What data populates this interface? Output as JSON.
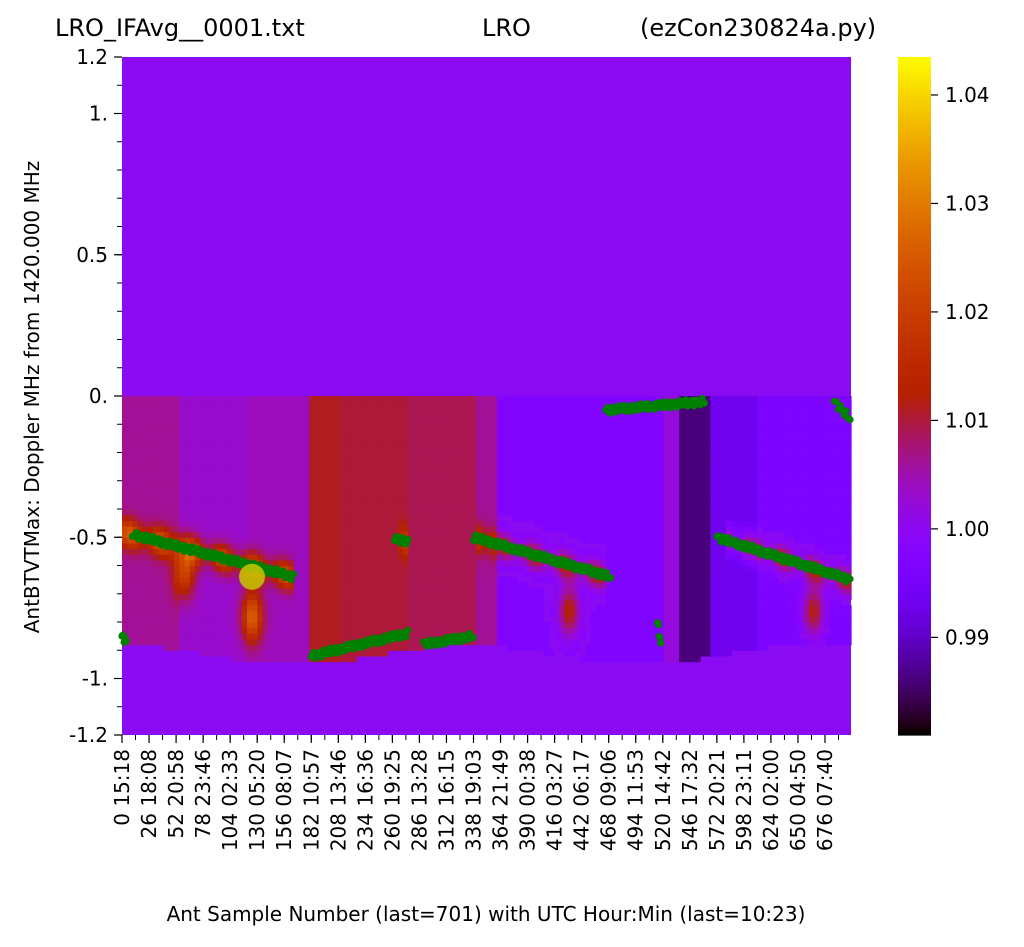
{
  "chart_data": {
    "type": "heatmap",
    "title_left": "LRO_IFAvg__0001.txt",
    "title_center": "LRO",
    "title_right": "(ezCon230824a.py)",
    "xlabel": "Ant Sample Number (last=701) with UTC Hour:Min (last=10:23)",
    "ylabel": "AntBTVTMax:  Doppler MHz from 1420.000 MHz",
    "xlim": [
      0,
      701
    ],
    "ylim": [
      -1.2,
      1.2
    ],
    "yticks": [
      {
        "value": 1.2,
        "label": "1.2"
      },
      {
        "value": 1.0,
        "label": "1."
      },
      {
        "value": 0.5,
        "label": "0.5"
      },
      {
        "value": 0.0,
        "label": "0."
      },
      {
        "value": -0.5,
        "label": "-0.5"
      },
      {
        "value": -1.0,
        "label": "-1."
      },
      {
        "value": -1.2,
        "label": "-1.2"
      }
    ],
    "xticks": [
      {
        "value": 0,
        "label": "0 15:18"
      },
      {
        "value": 26,
        "label": "26 18:08"
      },
      {
        "value": 52,
        "label": "52 20:58"
      },
      {
        "value": 78,
        "label": "78 23:46"
      },
      {
        "value": 104,
        "label": "104 02:33"
      },
      {
        "value": 130,
        "label": "130 05:20"
      },
      {
        "value": 156,
        "label": "156 08:07"
      },
      {
        "value": 182,
        "label": "182 10:57"
      },
      {
        "value": 208,
        "label": "208 13:46"
      },
      {
        "value": 234,
        "label": "234 16:36"
      },
      {
        "value": 260,
        "label": "260 19:25"
      },
      {
        "value": 286,
        "label": "286 13:28"
      },
      {
        "value": 312,
        "label": "312 16:15"
      },
      {
        "value": 338,
        "label": "338 19:03"
      },
      {
        "value": 364,
        "label": "364 21:49"
      },
      {
        "value": 390,
        "label": "390 00:38"
      },
      {
        "value": 416,
        "label": "416 03:27"
      },
      {
        "value": 442,
        "label": "442 06:17"
      },
      {
        "value": 468,
        "label": "468 09:06"
      },
      {
        "value": 494,
        "label": "494 11:53"
      },
      {
        "value": 520,
        "label": "520 14:42"
      },
      {
        "value": 546,
        "label": "546 17:32"
      },
      {
        "value": 572,
        "label": "572 20:21"
      },
      {
        "value": 598,
        "label": "598 23:11"
      },
      {
        "value": 624,
        "label": "624 02:00"
      },
      {
        "value": 650,
        "label": "650 04:50"
      },
      {
        "value": 676,
        "label": "676 07:40"
      }
    ],
    "colorbar": {
      "colormap": "gnuplot",
      "range": [
        0.981,
        1.0435
      ],
      "ticks": [
        0.99,
        1.0,
        1.01,
        1.02,
        1.03,
        1.04
      ],
      "tick_labels": [
        "0.99",
        "1.00",
        "1.01",
        "1.02",
        "1.03",
        "1.04"
      ]
    },
    "background_value": 0.9975,
    "data_band_top": 0.0,
    "data_band_bottom_range": [
      -0.88,
      -0.95
    ],
    "segments": [
      {
        "x": [
          0,
          55
        ],
        "base": 1.006
      },
      {
        "x": [
          55,
          120
        ],
        "base": 1.003
      },
      {
        "x": [
          120,
          182
        ],
        "base": 1.004
      },
      {
        "x": [
          182,
          212
        ],
        "base": 1.011
      },
      {
        "x": [
          212,
          275
        ],
        "base": 1.01
      },
      {
        "x": [
          275,
          338
        ],
        "base": 1.009
      },
      {
        "x": [
          338,
          362
        ],
        "base": 1.006
      },
      {
        "x": [
          362,
          522
        ],
        "base": 0.997
      },
      {
        "x": [
          522,
          535
        ],
        "base": 1.002
      },
      {
        "x": [
          535,
          565
        ],
        "base": 0.986
      },
      {
        "x": [
          565,
          610
        ],
        "base": 0.993
      },
      {
        "x": [
          610,
          701
        ],
        "base": 0.996
      }
    ],
    "peak_tracks": [
      {
        "x": [
          0,
          165
        ],
        "y": [
          -0.48,
          -0.64
        ],
        "strength": 0.02
      },
      {
        "x": [
          338,
          465
        ],
        "y": [
          -0.5,
          -0.64
        ],
        "strength": 0.016
      },
      {
        "x": [
          580,
          701
        ],
        "y": [
          -0.5,
          -0.66
        ],
        "strength": 0.016
      },
      {
        "x": [
          265,
          275
        ],
        "y": [
          -0.5,
          -0.52
        ],
        "strength": 0.01
      }
    ],
    "hot_spots": [
      {
        "x": 60,
        "y": -0.62,
        "strength": 0.018
      },
      {
        "x": 125,
        "y": -0.78,
        "strength": 0.022
      },
      {
        "x": 430,
        "y": -0.76,
        "strength": 0.016
      },
      {
        "x": 665,
        "y": -0.76,
        "strength": 0.016
      }
    ],
    "markers": [
      {
        "series": "AntBTVTMax",
        "color": "#008000",
        "segments": [
          {
            "x": [
              0,
              4
            ],
            "y": [
              -0.85,
              -0.87
            ]
          },
          {
            "x": [
              10,
              165
            ],
            "y": [
              -0.49,
              -0.64
            ]
          },
          {
            "x": [
              182,
              275
            ],
            "y": [
              -0.92,
              -0.84
            ]
          },
          {
            "x": [
              262,
              275
            ],
            "y": [
              -0.5,
              -0.52
            ]
          },
          {
            "x": [
              290,
              338
            ],
            "y": [
              -0.88,
              -0.85
            ]
          },
          {
            "x": [
              338,
              470
            ],
            "y": [
              -0.5,
              -0.64
            ]
          },
          {
            "x": [
              465,
              560
            ],
            "y": [
              -0.05,
              -0.02
            ]
          },
          {
            "x": [
              515,
              518
            ],
            "y": [
              -0.8,
              -0.88
            ]
          },
          {
            "x": [
              572,
              700
            ],
            "y": [
              -0.5,
              -0.65
            ]
          },
          {
            "x": [
              685,
              700
            ],
            "y": [
              -0.02,
              -0.08
            ]
          }
        ]
      }
    ],
    "highlight_point": {
      "x": 125,
      "y": -0.64,
      "color": "#c8c800"
    }
  }
}
